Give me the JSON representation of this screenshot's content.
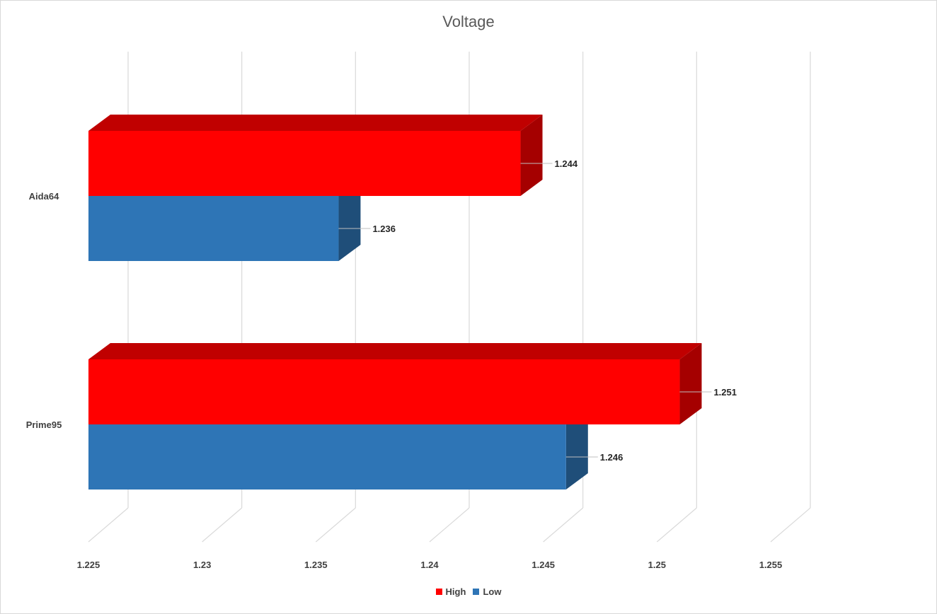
{
  "chart_data": {
    "type": "bar",
    "orientation": "horizontal",
    "style": "3d-clustered",
    "title": "Voltage",
    "categories": [
      "Aida64",
      "Prime95"
    ],
    "series": [
      {
        "name": "High",
        "color": "#ff0000",
        "side_color": "#a50000",
        "top_color": "#c00000",
        "values": [
          1.244,
          1.251
        ]
      },
      {
        "name": "Low",
        "color": "#2e75b6",
        "side_color": "#1f4e79",
        "top_color": "#2e75b6",
        "values": [
          1.236,
          1.246
        ]
      }
    ],
    "data_labels": {
      "High": [
        "1.244",
        "1.251"
      ],
      "Low": [
        "1.236",
        "1.246"
      ]
    },
    "xlim": [
      1.225,
      1.255
    ],
    "ticks": [
      1.225,
      1.23,
      1.235,
      1.24,
      1.245,
      1.25,
      1.255
    ],
    "tick_labels": [
      "1.225",
      "1.23",
      "1.235",
      "1.24",
      "1.245",
      "1.25",
      "1.255"
    ],
    "grid": true,
    "legend": "bottom",
    "xlabel": "",
    "ylabel": ""
  }
}
